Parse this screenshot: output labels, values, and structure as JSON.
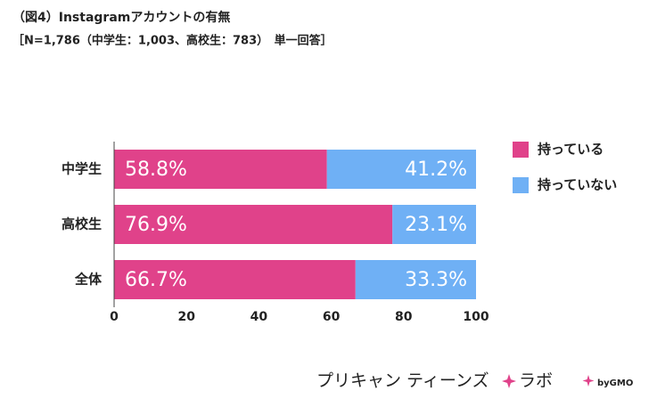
{
  "chart_data": {
    "type": "stacked_barh",
    "title": "（図4）Instagramアカウントの有無",
    "subtitle": "［N=1,786（中学生：1,003、高校生：783）　単一回答］",
    "categories": [
      "中学生",
      "高校生",
      "全体"
    ],
    "series": [
      {
        "name": "持っている",
        "color": "#e0428a",
        "values": [
          58.8,
          76.9,
          66.7
        ],
        "value_labels": [
          "58.8%",
          "76.9%",
          "66.7%"
        ]
      },
      {
        "name": "持っていない",
        "color": "#6fb0f5",
        "values": [
          41.2,
          23.1,
          33.3
        ],
        "value_labels": [
          "41.2%",
          "23.1%",
          "33.3%"
        ]
      }
    ],
    "xlim": [
      0,
      100
    ],
    "xticks": [
      0,
      20,
      40,
      60,
      80,
      100
    ],
    "grid": false,
    "legend": "right"
  },
  "brand": {
    "main": "プリキャン ティーンズ",
    "sub": "ラボ",
    "by": "byGMO"
  }
}
